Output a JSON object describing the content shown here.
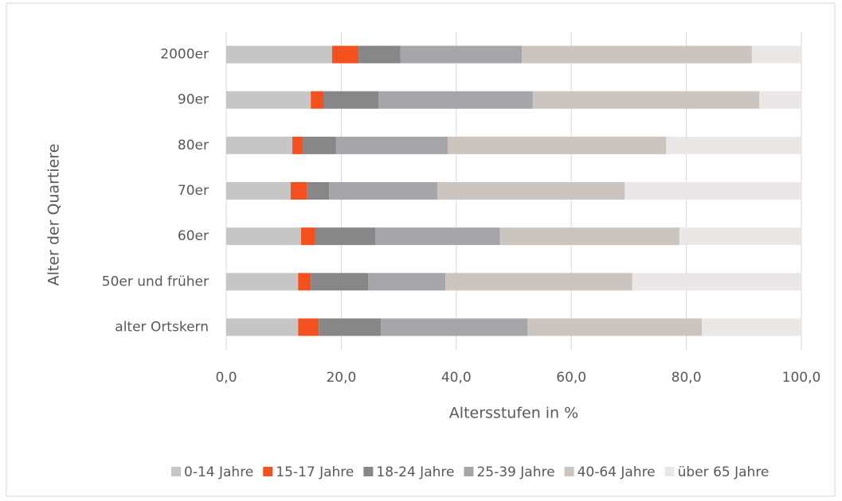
{
  "chart_data": {
    "type": "stacked_barh",
    "xlabel": "Altersstufen in %",
    "ylabel": "Alter der Quartiere",
    "categories": [
      "2000er",
      "90er",
      "80er",
      "70er",
      "60er",
      "50er und früher",
      "alter Ortskern"
    ],
    "series": [
      {
        "name": "0-14 Jahre",
        "color": "#c6c6c6",
        "values": [
          18.4,
          14.7,
          11.5,
          11.2,
          13.0,
          12.5,
          12.5
        ]
      },
      {
        "name": "15-17 Jahre",
        "color": "#f4511e",
        "values": [
          4.6,
          2.2,
          1.8,
          2.8,
          2.5,
          2.2,
          3.6
        ]
      },
      {
        "name": "18-24 Jahre",
        "color": "#878787",
        "values": [
          7.3,
          9.6,
          5.8,
          3.9,
          10.4,
          10.0,
          10.8
        ]
      },
      {
        "name": "25-39 Jahre",
        "color": "#a5a5aa",
        "values": [
          21.1,
          26.8,
          19.4,
          18.8,
          21.7,
          13.4,
          25.5
        ]
      },
      {
        "name": "40-64 Jahre",
        "color": "#cbc4bf",
        "values": [
          40.0,
          39.4,
          38.0,
          32.6,
          31.2,
          32.5,
          30.3
        ]
      },
      {
        "name": "über 65 Jahre",
        "color": "#ebe7e7",
        "values": [
          8.6,
          7.3,
          23.5,
          30.7,
          21.2,
          29.4,
          17.3
        ]
      }
    ],
    "xlim": [
      0,
      100
    ],
    "xticks": [
      {
        "value": 0,
        "label": "0,0"
      },
      {
        "value": 20,
        "label": "20,0"
      },
      {
        "value": 40,
        "label": "40,0"
      },
      {
        "value": 60,
        "label": "60,0"
      },
      {
        "value": 80,
        "label": "80,0"
      },
      {
        "value": 100,
        "label": "100,0"
      }
    ],
    "grid": true,
    "legend": "bottom"
  }
}
